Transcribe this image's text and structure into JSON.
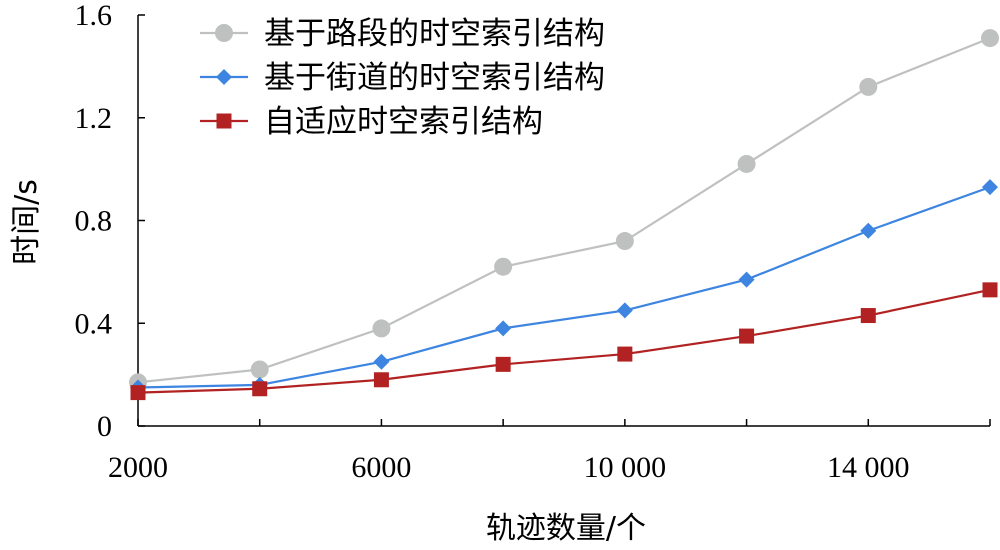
{
  "chart_data": {
    "type": "line",
    "xlabel": "轨迹数量/个",
    "ylabel": "时间/s",
    "x": [
      2000,
      4000,
      6000,
      8000,
      10000,
      12000,
      14000,
      16000
    ],
    "x_ticks": [
      "2000",
      "6000",
      "10 000",
      "14 000"
    ],
    "x_tick_values": [
      2000,
      6000,
      10000,
      14000
    ],
    "y_ticks": [
      "0",
      "0.4",
      "0.8",
      "1.2",
      "1.6"
    ],
    "y_tick_values": [
      0,
      0.4,
      0.8,
      1.2,
      1.6
    ],
    "xlim": [
      2000,
      16000
    ],
    "ylim": [
      0,
      1.6
    ],
    "grid": false,
    "legend_position": "top-left",
    "series": [
      {
        "name": "基于路段的时空索引结构",
        "marker": "circle",
        "color": "#bfc1c0",
        "values": [
          0.17,
          0.22,
          0.38,
          0.62,
          0.72,
          1.02,
          1.32,
          1.51
        ]
      },
      {
        "name": "基于街道的时空索引结构",
        "marker": "diamond",
        "color": "#3d85e0",
        "values": [
          0.15,
          0.16,
          0.25,
          0.38,
          0.45,
          0.57,
          0.76,
          0.93
        ]
      },
      {
        "name": "自适应时空索引结构",
        "marker": "square",
        "color": "#b22222",
        "values": [
          0.13,
          0.145,
          0.18,
          0.24,
          0.28,
          0.35,
          0.43,
          0.53
        ]
      }
    ]
  }
}
